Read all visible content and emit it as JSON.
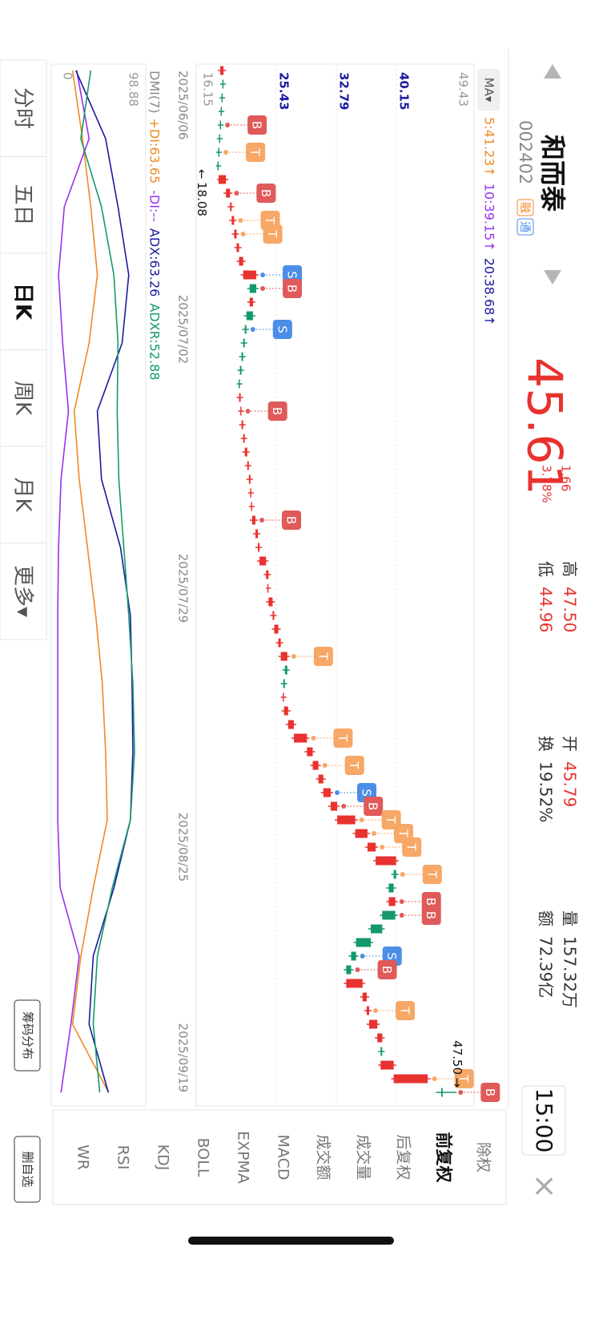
{
  "header": {
    "name": "和而泰",
    "code": "002402",
    "badges": [
      "融",
      "通"
    ],
    "price": "45.61",
    "change": "1.66",
    "change_pct": "3.78%",
    "stats": [
      {
        "label": "高",
        "value": "47.50"
      },
      {
        "label": "低",
        "value": "44.96"
      },
      {
        "label": "开",
        "value": "45.79"
      },
      {
        "label": "换",
        "value": "19.52%"
      },
      {
        "label": "量",
        "value": "157.32万"
      },
      {
        "label": "额",
        "value": "72.39亿"
      }
    ],
    "time": "15:00"
  },
  "chart_data": [
    {
      "type": "candlestick",
      "ma_title": "MA▾",
      "ma_legend": [
        {
          "text": "5:41.23↑",
          "color": "#f08a24"
        },
        {
          "text": "10:39.15↑",
          "color": "#9b30f0"
        },
        {
          "text": "20:38.68↑",
          "color": "#1a1aa0"
        }
      ],
      "categories": [
        "2025/06/06",
        null,
        null,
        null,
        null,
        null,
        null,
        null,
        null,
        null,
        null,
        null,
        null,
        null,
        null,
        null,
        null,
        null,
        null,
        "2025/07/02",
        null,
        null,
        null,
        null,
        null,
        null,
        null,
        null,
        null,
        null,
        null,
        null,
        null,
        null,
        null,
        null,
        null,
        null,
        "2025/07/29",
        null,
        null,
        null,
        null,
        null,
        null,
        null,
        null,
        null,
        null,
        null,
        null,
        null,
        null,
        null,
        null,
        null,
        null,
        "2025/08/25",
        null,
        null,
        null,
        null,
        null,
        null,
        null,
        null,
        null,
        null,
        null,
        null,
        null,
        null,
        null,
        null,
        null,
        "2025/09/19"
      ],
      "open": [
        18.6,
        19.0,
        18.9,
        18.8,
        18.7,
        18.6,
        18.5,
        18.4,
        18.4,
        19.3,
        19.8,
        20.0,
        20.3,
        20.6,
        20.9,
        21.4,
        23.0,
        22.2,
        22.6,
        21.8,
        21.6,
        21.4,
        21.2,
        21.0,
        20.9,
        21.1,
        21.2,
        21.4,
        21.6,
        21.9,
        22.1,
        22.3,
        22.4,
        22.5,
        22.9,
        23.2,
        23.4,
        24.2,
        24.5,
        24.5,
        25.0,
        25.2,
        25.7,
        26.0,
        26.8,
        26.5,
        26.3,
        26.4,
        26.9,
        27.6,
        29.2,
        29.9,
        30.6,
        31.2,
        32.1,
        32.9,
        35.1,
        36.6,
        37.6,
        40.1,
        39.8,
        39.2,
        40.0,
        38.4,
        37.0,
        35.2,
        34.6,
        34.0,
        36.0,
        36.5,
        36.8,
        37.8,
        38.4,
        38.2,
        39.8,
        45.79
      ],
      "high": [
        19.3,
        19.3,
        19.2,
        19.1,
        19.0,
        18.9,
        18.8,
        18.7,
        19.6,
        20.1,
        20.3,
        20.6,
        20.9,
        21.2,
        21.7,
        23.3,
        23.3,
        22.9,
        22.9,
        22.1,
        21.9,
        21.7,
        21.5,
        21.3,
        21.4,
        21.5,
        21.7,
        21.9,
        22.2,
        22.4,
        22.6,
        22.7,
        22.8,
        23.2,
        23.5,
        23.7,
        24.5,
        24.8,
        24.8,
        25.3,
        25.5,
        26.0,
        26.3,
        27.1,
        27.1,
        26.8,
        26.7,
        27.2,
        27.9,
        29.5,
        30.2,
        30.9,
        31.5,
        32.4,
        33.2,
        35.4,
        36.9,
        37.9,
        40.4,
        40.4,
        40.1,
        40.3,
        40.3,
        38.7,
        37.3,
        35.5,
        34.9,
        36.3,
        36.8,
        37.1,
        38.1,
        38.7,
        38.7,
        40.1,
        44.3,
        47.5
      ],
      "low": [
        18.3,
        18.6,
        18.5,
        18.4,
        18.3,
        18.2,
        18.1,
        18.08,
        18.2,
        19.0,
        19.5,
        19.7,
        20.0,
        20.3,
        20.6,
        21.1,
        21.9,
        21.9,
        21.5,
        21.3,
        21.1,
        20.9,
        20.7,
        20.6,
        20.6,
        20.8,
        20.9,
        21.1,
        21.3,
        21.6,
        21.8,
        22.0,
        22.1,
        22.2,
        22.6,
        22.9,
        23.1,
        23.9,
        24.2,
        24.2,
        24.7,
        24.9,
        25.4,
        25.7,
        26.2,
        26.0,
        26.0,
        26.1,
        26.6,
        27.3,
        28.9,
        29.6,
        30.3,
        30.9,
        31.8,
        32.6,
        34.8,
        36.3,
        37.3,
        39.5,
        38.9,
        38.9,
        38.1,
        36.7,
        34.9,
        34.3,
        33.7,
        33.7,
        35.7,
        36.2,
        36.5,
        37.5,
        37.9,
        37.9,
        39.5,
        44.96
      ],
      "close": [
        19.0,
        18.9,
        18.8,
        18.7,
        18.6,
        18.5,
        18.4,
        18.3,
        19.3,
        19.8,
        20.0,
        20.3,
        20.6,
        20.9,
        21.4,
        23.0,
        22.2,
        22.6,
        21.8,
        21.6,
        21.4,
        21.2,
        21.0,
        20.9,
        21.1,
        21.2,
        21.4,
        21.6,
        21.9,
        22.1,
        22.3,
        22.4,
        22.5,
        22.9,
        23.2,
        23.4,
        24.2,
        24.5,
        24.5,
        25.0,
        25.2,
        25.7,
        26.0,
        26.8,
        26.5,
        26.3,
        26.4,
        26.9,
        27.6,
        29.2,
        29.9,
        30.6,
        31.2,
        32.1,
        32.9,
        35.1,
        36.6,
        37.6,
        40.1,
        39.8,
        39.2,
        40.0,
        38.4,
        37.0,
        35.2,
        34.6,
        34.0,
        36.0,
        36.5,
        36.8,
        37.8,
        38.4,
        38.2,
        39.8,
        43.95,
        45.61
      ],
      "up_color": "#e8322f",
      "down_color": "#14996a",
      "ylim": [
        16.15,
        49.43
      ],
      "yticks": [
        16.15,
        25.43,
        32.79,
        40.15,
        49.43
      ],
      "grid": true,
      "annotations": [
        {
          "label": "47.50",
          "index": 75,
          "at": "high"
        },
        {
          "label": "18.08",
          "index": 7,
          "at": "low"
        }
      ],
      "signal_colors": {
        "B": "#e05a5a",
        "S": "#4a8ee8",
        "T": "#f7a766"
      },
      "signals": [
        {
          "label": "B",
          "index": 4
        },
        {
          "label": "T",
          "index": 6
        },
        {
          "label": "B",
          "index": 9
        },
        {
          "label": "T",
          "index": 11
        },
        {
          "label": "T",
          "index": 12
        },
        {
          "label": "S",
          "index": 15
        },
        {
          "label": "B",
          "index": 16
        },
        {
          "label": "S",
          "index": 19
        },
        {
          "label": "B",
          "index": 25
        },
        {
          "label": "B",
          "index": 33
        },
        {
          "label": "T",
          "index": 43
        },
        {
          "label": "T",
          "index": 49
        },
        {
          "label": "T",
          "index": 51
        },
        {
          "label": "S",
          "index": 53
        },
        {
          "label": "B",
          "index": 54
        },
        {
          "label": "T",
          "index": 55
        },
        {
          "label": "T",
          "index": 56
        },
        {
          "label": "T",
          "index": 57
        },
        {
          "label": "T",
          "index": 59
        },
        {
          "label": "B",
          "index": 61
        },
        {
          "label": "B",
          "index": 62
        },
        {
          "label": "S",
          "index": 65
        },
        {
          "label": "B",
          "index": 66
        },
        {
          "label": "T",
          "index": 69
        },
        {
          "label": "T",
          "index": 74
        },
        {
          "label": "B",
          "index": 75
        }
      ]
    },
    {
      "type": "line",
      "title": "DMI(7)",
      "x": [
        0,
        5,
        10,
        15,
        20,
        25,
        30,
        35,
        40,
        45,
        50,
        55,
        60,
        65,
        70,
        75
      ],
      "xlim": [
        0,
        75
      ],
      "series": [
        {
          "name": "+DI:63.65",
          "color": "#f08a24",
          "values": [
            20,
            32,
            42,
            50,
            40,
            22,
            28,
            38,
            48,
            56,
            60,
            62,
            45,
            30,
            20,
            63.65
          ]
        },
        {
          "name": "-DI:--",
          "color": "#9b30f0",
          "values": [
            25,
            40,
            10,
            3,
            8,
            15,
            6,
            3,
            2,
            2,
            2,
            2,
            5,
            28,
            18,
            6
          ]
        },
        {
          "name": "ADX:63.26",
          "color": "#1a1aa0",
          "values": [
            24,
            60,
            75,
            88,
            80,
            50,
            55,
            78,
            90,
            92,
            93,
            90,
            70,
            45,
            40,
            63.26
          ]
        },
        {
          "name": "ADXR:52.88",
          "color": "#14996a",
          "values": [
            42,
            30,
            55,
            70,
            75,
            74,
            76,
            82,
            88,
            93,
            95,
            90,
            68,
            50,
            45,
            52.88
          ]
        }
      ],
      "ylim": [
        0,
        98.88
      ],
      "yticks": [
        0,
        98.88
      ]
    }
  ],
  "side_panel": {
    "items": [
      "除权",
      "前复权",
      "后复权",
      "成交量",
      "成交额",
      "MACD",
      "EXPMA",
      "BOLL",
      "KDJ",
      "RSI",
      "WR"
    ],
    "active": 1,
    "button": "删自选"
  },
  "tabs": {
    "items": [
      "分时",
      "五日",
      "日K",
      "周K",
      "月K",
      "更多▾"
    ],
    "active": 2,
    "chip_button": "筹码分布"
  }
}
